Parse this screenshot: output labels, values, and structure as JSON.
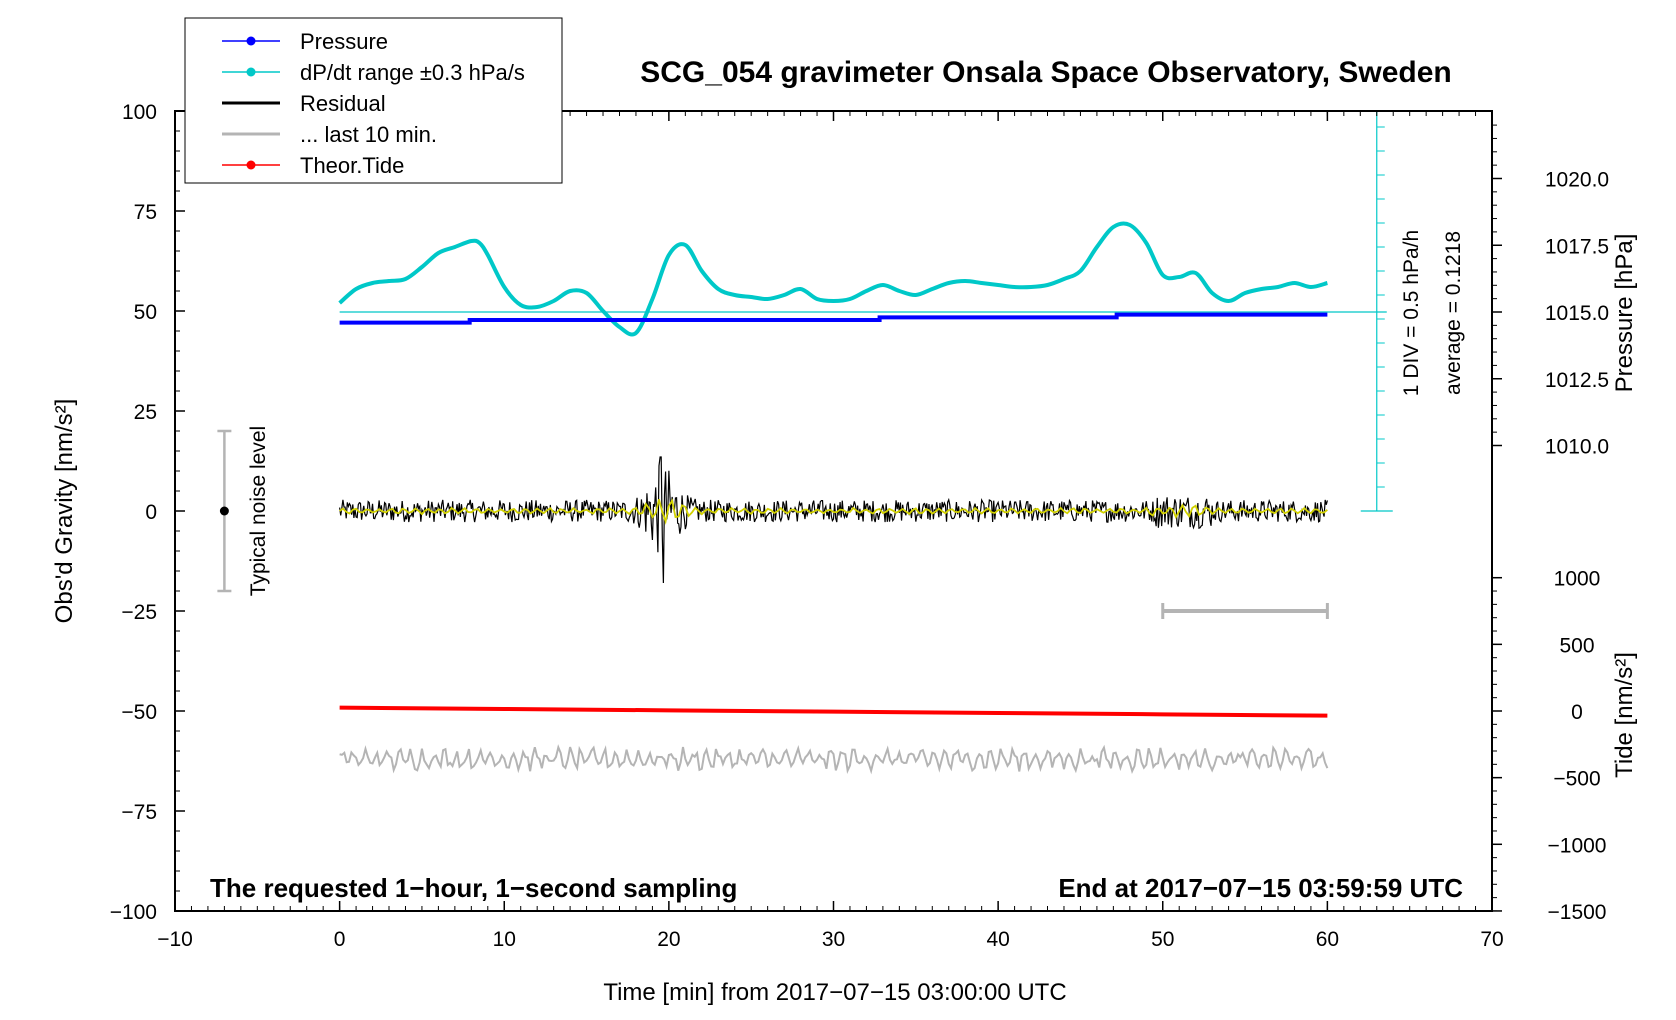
{
  "chart_data": {
    "type": "line",
    "title": "SCG_054 gravimeter Onsala Space Observatory, Sweden",
    "xlabel": "Time [min] from 2017−07−15 03:00:00 UTC",
    "ylabel": "Obs'd Gravity [nm/s²]",
    "ylabel_right_pressure": "Pressure [hPa]",
    "ylabel_right_tide": "Tide [nm/s²]",
    "xlim": [
      -10,
      70
    ],
    "ylim": [
      -100,
      100
    ],
    "pressure_ylim": [
      1005.0,
      1023.5
    ],
    "tide_ylim": [
      -1500,
      1500
    ],
    "x_ticks": [
      -10,
      0,
      10,
      20,
      30,
      40,
      50,
      60,
      70
    ],
    "x_tick_labels": [
      "−10",
      "0",
      "10",
      "20",
      "30",
      "40",
      "50",
      "60",
      "70"
    ],
    "y_ticks": [
      100,
      75,
      50,
      25,
      0,
      -25,
      -50,
      -75,
      -100
    ],
    "y_tick_labels": [
      "100",
      "75",
      "50",
      "25",
      "0",
      "−25",
      "−50",
      "−75",
      "−100"
    ],
    "pressure_ticks": [
      1020.0,
      1017.5,
      1015.0,
      1012.5,
      1010.0
    ],
    "pressure_tick_labels": [
      "1020.0",
      "1017.5",
      "1015.0",
      "1012.5",
      "1010.0"
    ],
    "tide_ticks": [
      1000,
      500,
      0,
      -500,
      -1000,
      -1500
    ],
    "tide_tick_labels": [
      "1000",
      "500",
      "0",
      "−500",
      "−1000",
      "−1500"
    ],
    "legend": {
      "placement": "top-left",
      "entries": [
        {
          "label": "Pressure",
          "color": "#0000ff",
          "marker": true,
          "style": "thin"
        },
        {
          "label": "dP/dt range ±0.3 hPa/s",
          "color": "#00c8c8",
          "marker": true,
          "style": "thin"
        },
        {
          "label": "Residual",
          "color": "#000000",
          "marker": false,
          "style": "thick"
        },
        {
          "label": "... last 10 min.",
          "color": "#b4b4b4",
          "marker": false,
          "style": "thick"
        },
        {
          "label": "Theor.Tide",
          "color": "#ff0000",
          "marker": true,
          "style": "thin"
        }
      ]
    },
    "annotations": {
      "bottom_left": "The requested 1−hour, 1−second sampling",
      "bottom_right": "End at 2017−07−15 03:59:59 UTC",
      "noise_label": "Typical noise level",
      "div_label": "1 DIV = 0.5 hPa/h",
      "average_label": "average = 0.1218"
    },
    "noise_bar": {
      "x": -7,
      "y_low": -20,
      "y_high": 20,
      "center": 0
    },
    "last10_bar": {
      "x_start": 50,
      "x_end": 60,
      "y": -25
    },
    "pressure_reference": 1015.0,
    "dpdt_scale": {
      "x": 63,
      "y_low": 0,
      "y_high": 100
    },
    "series": [
      {
        "name": "Pressure",
        "units": "hPa",
        "color": "#0000ff",
        "x": [
          0,
          7.9,
          7.9,
          32.8,
          32.8,
          47.2,
          47.2,
          60
        ],
        "values": [
          1014.6,
          1014.6,
          1014.7,
          1014.7,
          1014.8,
          1014.8,
          1014.9,
          1014.9
        ]
      },
      {
        "name": "dP/dt range ±0.3 hPa/s",
        "units": "nm/s² axis",
        "color": "#00c8c8",
        "x": [
          0,
          1,
          2,
          3,
          4,
          5,
          6,
          7,
          8,
          8.5,
          9,
          10,
          11,
          12,
          13,
          14,
          15,
          16,
          17,
          18,
          19,
          20,
          21,
          22,
          23,
          24,
          25,
          26,
          27,
          28,
          29,
          30,
          31,
          32,
          33,
          34,
          35,
          36,
          37,
          38,
          39,
          40,
          41,
          42,
          43,
          44,
          45,
          46,
          47,
          48,
          49,
          50,
          51,
          52,
          53,
          54,
          55,
          56,
          57,
          58,
          59,
          60
        ],
        "values": [
          52,
          55.5,
          57,
          57.5,
          58,
          61,
          64.5,
          66,
          67.5,
          67,
          64,
          56,
          51.5,
          51,
          52.5,
          55,
          54.5,
          50,
          46,
          44.5,
          53,
          64,
          66.5,
          60,
          55.5,
          54,
          53.5,
          53,
          54,
          55.5,
          53,
          52.5,
          53,
          55,
          56.5,
          55,
          54,
          55.5,
          57,
          57.5,
          57,
          56.5,
          56,
          56,
          56.5,
          58,
          60,
          66,
          71,
          71.5,
          67,
          59,
          58.5,
          59.5,
          54.5,
          52.5,
          54.5,
          55.5,
          56,
          57,
          56,
          57
        ]
      },
      {
        "name": "Theor.Tide",
        "units": "nm/s²",
        "color": "#ff0000",
        "x": [
          0,
          10,
          20,
          30,
          40,
          50,
          60
        ],
        "values": [
          25,
          15,
          5,
          -5,
          -15,
          -25,
          -35
        ]
      },
      {
        "name": "Residual",
        "units": "nm/s²",
        "color": "#000000",
        "x_range": [
          0,
          60
        ],
        "amplitude_note": "about ±3 typical, event near 19.5 min up to +13 / −18",
        "peak": {
          "x": 19.6,
          "max": 13.5,
          "min": -18
        }
      }
    ]
  }
}
